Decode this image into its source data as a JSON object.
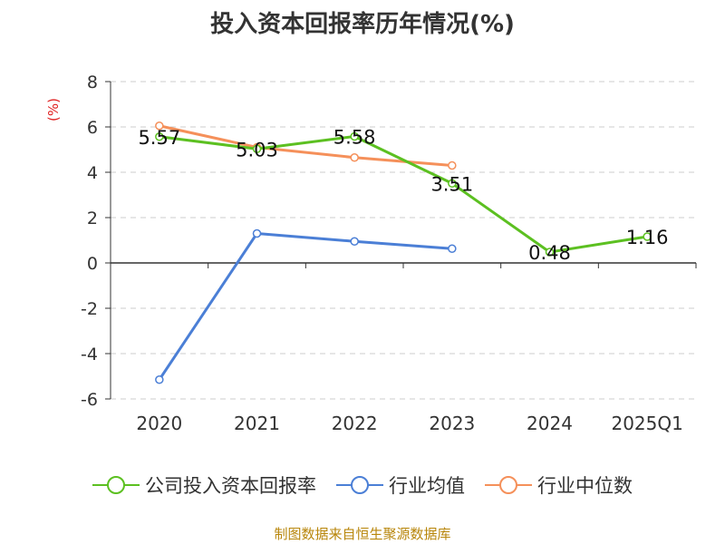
{
  "chart_data": {
    "type": "line",
    "title": "投入资本回报率历年情况(%)",
    "unit_label": "(%)",
    "categories": [
      "2020",
      "2021",
      "2022",
      "2023",
      "2024",
      "2025Q1"
    ],
    "yticks": [
      "8",
      "6",
      "4",
      "2",
      "0",
      "-2",
      "-4",
      "-6"
    ],
    "ylim": [
      -6,
      8
    ],
    "grid": true,
    "legend_position": "bottom",
    "series": [
      {
        "name": "公司投入资本回报率",
        "color": "#5cc021",
        "values": [
          5.57,
          5.03,
          5.58,
          3.51,
          0.48,
          1.16
        ],
        "labels": [
          "5.57",
          "5.03",
          "5.58",
          "3.51",
          "0.48",
          "1.16"
        ]
      },
      {
        "name": "行业均值",
        "color": "#4b7fd6",
        "values": [
          -5.15,
          1.3,
          0.95,
          0.63,
          null,
          null
        ]
      },
      {
        "name": "行业中位数",
        "color": "#f5905a",
        "values": [
          6.05,
          5.1,
          4.65,
          4.3,
          null,
          null
        ]
      }
    ],
    "source": "制图数据来自恒生聚源数据库"
  }
}
